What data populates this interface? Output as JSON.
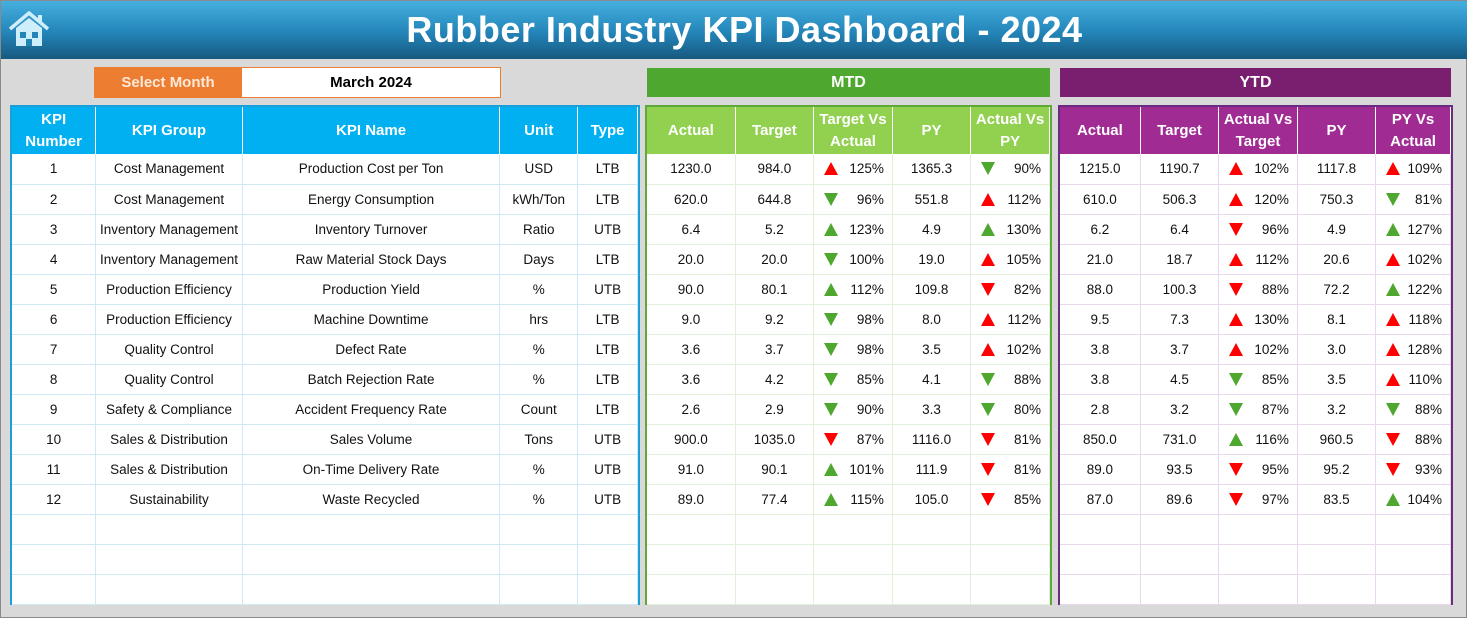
{
  "header": {
    "title": "Rubber Industry KPI Dashboard - 2024",
    "home_icon": "home-icon"
  },
  "selector": {
    "label": "Select Month",
    "value": "March 2024"
  },
  "sections": {
    "mtd": "MTD",
    "ytd": "YTD"
  },
  "colors": {
    "up_bad": "#ff0000",
    "good": "#4ea72e",
    "title": "#2384b8",
    "mtd": "#4ea72e",
    "ytd": "#7a1f6f",
    "select": "#ed7d31"
  },
  "left_headers": [
    "KPI Number",
    "KPI Group",
    "KPI Name",
    "Unit",
    "Type"
  ],
  "mtd_headers": [
    "Actual",
    "Target",
    "Target Vs Actual",
    "PY",
    "Actual Vs PY"
  ],
  "ytd_headers": [
    "Actual",
    "Target",
    "Actual Vs Target",
    "PY",
    "PY Vs Actual"
  ],
  "rows": [
    {
      "num": "1",
      "group": "Cost Management",
      "name": "Production Cost per Ton",
      "unit": "USD",
      "type": "LTB",
      "mtd": {
        "actual": "1230.0",
        "target": "984.0",
        "tva": {
          "pct": "125%",
          "dir": "up",
          "color": "red"
        },
        "py": "1365.3",
        "avpy": {
          "pct": "90%",
          "dir": "down",
          "color": "green"
        }
      },
      "ytd": {
        "actual": "1215.0",
        "target": "1190.7",
        "avt": {
          "pct": "102%",
          "dir": "up",
          "color": "red"
        },
        "py": "1117.8",
        "pyva": {
          "pct": "109%",
          "dir": "up",
          "color": "red"
        }
      }
    },
    {
      "num": "2",
      "group": "Cost Management",
      "name": "Energy Consumption",
      "unit": "kWh/Ton",
      "type": "LTB",
      "mtd": {
        "actual": "620.0",
        "target": "644.8",
        "tva": {
          "pct": "96%",
          "dir": "down",
          "color": "green"
        },
        "py": "551.8",
        "avpy": {
          "pct": "112%",
          "dir": "up",
          "color": "red"
        }
      },
      "ytd": {
        "actual": "610.0",
        "target": "506.3",
        "avt": {
          "pct": "120%",
          "dir": "up",
          "color": "red"
        },
        "py": "750.3",
        "pyva": {
          "pct": "81%",
          "dir": "down",
          "color": "green"
        }
      }
    },
    {
      "num": "3",
      "group": "Inventory Management",
      "name": "Inventory Turnover",
      "unit": "Ratio",
      "type": "UTB",
      "mtd": {
        "actual": "6.4",
        "target": "5.2",
        "tva": {
          "pct": "123%",
          "dir": "up",
          "color": "green"
        },
        "py": "4.9",
        "avpy": {
          "pct": "130%",
          "dir": "up",
          "color": "green"
        }
      },
      "ytd": {
        "actual": "6.2",
        "target": "6.4",
        "avt": {
          "pct": "96%",
          "dir": "down",
          "color": "red"
        },
        "py": "4.9",
        "pyva": {
          "pct": "127%",
          "dir": "up",
          "color": "green"
        }
      }
    },
    {
      "num": "4",
      "group": "Inventory Management",
      "name": "Raw Material Stock Days",
      "unit": "Days",
      "type": "LTB",
      "mtd": {
        "actual": "20.0",
        "target": "20.0",
        "tva": {
          "pct": "100%",
          "dir": "down",
          "color": "green"
        },
        "py": "19.0",
        "avpy": {
          "pct": "105%",
          "dir": "up",
          "color": "red"
        }
      },
      "ytd": {
        "actual": "21.0",
        "target": "18.7",
        "avt": {
          "pct": "112%",
          "dir": "up",
          "color": "red"
        },
        "py": "20.6",
        "pyva": {
          "pct": "102%",
          "dir": "up",
          "color": "red"
        }
      }
    },
    {
      "num": "5",
      "group": "Production Efficiency",
      "name": "Production Yield",
      "unit": "%",
      "type": "UTB",
      "mtd": {
        "actual": "90.0",
        "target": "80.1",
        "tva": {
          "pct": "112%",
          "dir": "up",
          "color": "green"
        },
        "py": "109.8",
        "avpy": {
          "pct": "82%",
          "dir": "down",
          "color": "red"
        }
      },
      "ytd": {
        "actual": "88.0",
        "target": "100.3",
        "avt": {
          "pct": "88%",
          "dir": "down",
          "color": "red"
        },
        "py": "72.2",
        "pyva": {
          "pct": "122%",
          "dir": "up",
          "color": "green"
        }
      }
    },
    {
      "num": "6",
      "group": "Production Efficiency",
      "name": "Machine Downtime",
      "unit": "hrs",
      "type": "LTB",
      "mtd": {
        "actual": "9.0",
        "target": "9.2",
        "tva": {
          "pct": "98%",
          "dir": "down",
          "color": "green"
        },
        "py": "8.0",
        "avpy": {
          "pct": "112%",
          "dir": "up",
          "color": "red"
        }
      },
      "ytd": {
        "actual": "9.5",
        "target": "7.3",
        "avt": {
          "pct": "130%",
          "dir": "up",
          "color": "red"
        },
        "py": "8.1",
        "pyva": {
          "pct": "118%",
          "dir": "up",
          "color": "red"
        }
      }
    },
    {
      "num": "7",
      "group": "Quality Control",
      "name": "Defect Rate",
      "unit": "%",
      "type": "LTB",
      "mtd": {
        "actual": "3.6",
        "target": "3.7",
        "tva": {
          "pct": "98%",
          "dir": "down",
          "color": "green"
        },
        "py": "3.5",
        "avpy": {
          "pct": "102%",
          "dir": "up",
          "color": "red"
        }
      },
      "ytd": {
        "actual": "3.8",
        "target": "3.7",
        "avt": {
          "pct": "102%",
          "dir": "up",
          "color": "red"
        },
        "py": "3.0",
        "pyva": {
          "pct": "128%",
          "dir": "up",
          "color": "red"
        }
      }
    },
    {
      "num": "8",
      "group": "Quality Control",
      "name": "Batch Rejection Rate",
      "unit": "%",
      "type": "LTB",
      "mtd": {
        "actual": "3.6",
        "target": "4.2",
        "tva": {
          "pct": "85%",
          "dir": "down",
          "color": "green"
        },
        "py": "4.1",
        "avpy": {
          "pct": "88%",
          "dir": "down",
          "color": "green"
        }
      },
      "ytd": {
        "actual": "3.8",
        "target": "4.5",
        "avt": {
          "pct": "85%",
          "dir": "down",
          "color": "green"
        },
        "py": "3.5",
        "pyva": {
          "pct": "110%",
          "dir": "up",
          "color": "red"
        }
      }
    },
    {
      "num": "9",
      "group": "Safety & Compliance",
      "name": "Accident Frequency Rate",
      "unit": "Count",
      "type": "LTB",
      "mtd": {
        "actual": "2.6",
        "target": "2.9",
        "tva": {
          "pct": "90%",
          "dir": "down",
          "color": "green"
        },
        "py": "3.3",
        "avpy": {
          "pct": "80%",
          "dir": "down",
          "color": "green"
        }
      },
      "ytd": {
        "actual": "2.8",
        "target": "3.2",
        "avt": {
          "pct": "87%",
          "dir": "down",
          "color": "green"
        },
        "py": "3.2",
        "pyva": {
          "pct": "88%",
          "dir": "down",
          "color": "green"
        }
      }
    },
    {
      "num": "10",
      "group": "Sales & Distribution",
      "name": "Sales Volume",
      "unit": "Tons",
      "type": "UTB",
      "mtd": {
        "actual": "900.0",
        "target": "1035.0",
        "tva": {
          "pct": "87%",
          "dir": "down",
          "color": "red"
        },
        "py": "1116.0",
        "avpy": {
          "pct": "81%",
          "dir": "down",
          "color": "red"
        }
      },
      "ytd": {
        "actual": "850.0",
        "target": "731.0",
        "avt": {
          "pct": "116%",
          "dir": "up",
          "color": "green"
        },
        "py": "960.5",
        "pyva": {
          "pct": "88%",
          "dir": "down",
          "color": "red"
        }
      }
    },
    {
      "num": "11",
      "group": "Sales & Distribution",
      "name": "On-Time Delivery Rate",
      "unit": "%",
      "type": "UTB",
      "mtd": {
        "actual": "91.0",
        "target": "90.1",
        "tva": {
          "pct": "101%",
          "dir": "up",
          "color": "green"
        },
        "py": "111.9",
        "avpy": {
          "pct": "81%",
          "dir": "down",
          "color": "red"
        }
      },
      "ytd": {
        "actual": "89.0",
        "target": "93.5",
        "avt": {
          "pct": "95%",
          "dir": "down",
          "color": "red"
        },
        "py": "95.2",
        "pyva": {
          "pct": "93%",
          "dir": "down",
          "color": "red"
        }
      }
    },
    {
      "num": "12",
      "group": "Sustainability",
      "name": "Waste Recycled",
      "unit": "%",
      "type": "UTB",
      "mtd": {
        "actual": "89.0",
        "target": "77.4",
        "tva": {
          "pct": "115%",
          "dir": "up",
          "color": "green"
        },
        "py": "105.0",
        "avpy": {
          "pct": "85%",
          "dir": "down",
          "color": "red"
        }
      },
      "ytd": {
        "actual": "87.0",
        "target": "89.6",
        "avt": {
          "pct": "97%",
          "dir": "down",
          "color": "red"
        },
        "py": "83.5",
        "pyva": {
          "pct": "104%",
          "dir": "up",
          "color": "green"
        }
      }
    }
  ]
}
